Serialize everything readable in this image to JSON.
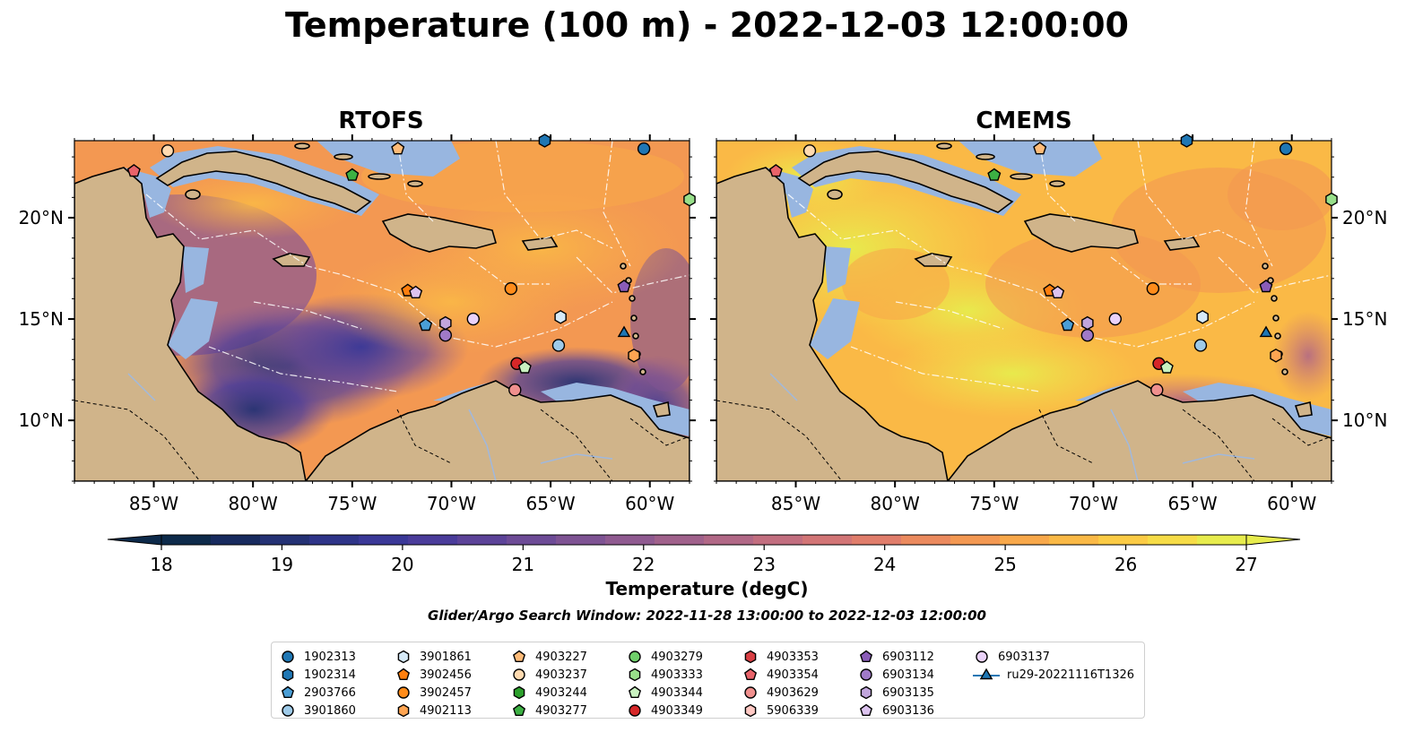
{
  "title": "Temperature (100 m) - 2022-12-03 12:00:00",
  "panels": [
    {
      "id": "rtofs",
      "title": "RTOFS"
    },
    {
      "id": "cmems",
      "title": "CMEMS"
    }
  ],
  "axes": {
    "lon_ticks": [
      "85°W",
      "80°W",
      "75°W",
      "70°W",
      "65°W",
      "60°W"
    ],
    "lat_ticks": [
      "20°N",
      "15°N",
      "10°N"
    ],
    "lon_range": [
      -89,
      -58
    ],
    "lat_range": [
      7,
      23.8
    ]
  },
  "colorbar": {
    "label": "Temperature (degC)",
    "ticks": [
      "18",
      "19",
      "20",
      "21",
      "22",
      "23",
      "24",
      "25",
      "26",
      "27"
    ],
    "range": [
      18,
      27
    ],
    "colors": [
      "#0d2a4a",
      "#172a5e",
      "#243174",
      "#2e3488",
      "#3a3897",
      "#4a3c9a",
      "#5c4398",
      "#6d4b96",
      "#7e5393",
      "#8f5a90",
      "#a0618b",
      "#b16886",
      "#c26e7f",
      "#d27576",
      "#e07d6b",
      "#eb8a5e",
      "#f39852",
      "#f8a84a",
      "#fab946",
      "#fbcb45",
      "#f6dc47",
      "#e7ec4d"
    ]
  },
  "search_window": "Glider/Argo Search Window: 2022-11-28 13:00:00 to 2022-12-03 12:00:00",
  "legend": [
    {
      "id": "1902313",
      "marker": "circle",
      "color": "#1f77b4"
    },
    {
      "id": "1902314",
      "marker": "hexagon",
      "color": "#1f77b4"
    },
    {
      "id": "2903766",
      "marker": "pentagon",
      "color": "#4a9ed6"
    },
    {
      "id": "3901860",
      "marker": "circle",
      "color": "#9ecae8"
    },
    {
      "id": "3901861",
      "marker": "hexagon",
      "color": "#d6eaf8"
    },
    {
      "id": "3902456",
      "marker": "pentagon",
      "color": "#ff7f0e"
    },
    {
      "id": "3902457",
      "marker": "circle",
      "color": "#ff8c1a"
    },
    {
      "id": "4902113",
      "marker": "hexagon",
      "color": "#ffa552"
    },
    {
      "id": "4903227",
      "marker": "pentagon",
      "color": "#ffbb78"
    },
    {
      "id": "4903237",
      "marker": "circle",
      "color": "#ffdab0"
    },
    {
      "id": "4903244",
      "marker": "hexagon",
      "color": "#2ca02c"
    },
    {
      "id": "4903277",
      "marker": "pentagon",
      "color": "#3cb043"
    },
    {
      "id": "4903279",
      "marker": "circle",
      "color": "#6fcf6a"
    },
    {
      "id": "4903333",
      "marker": "hexagon",
      "color": "#98df8a"
    },
    {
      "id": "4903344",
      "marker": "pentagon",
      "color": "#c9f2c0"
    },
    {
      "id": "4903349",
      "marker": "circle",
      "color": "#d62728"
    },
    {
      "id": "4903353",
      "marker": "hexagon",
      "color": "#d94045"
    },
    {
      "id": "4903354",
      "marker": "pentagon",
      "color": "#e8636a"
    },
    {
      "id": "4903629",
      "marker": "circle",
      "color": "#f0908e"
    },
    {
      "id": "5906339",
      "marker": "hexagon",
      "color": "#ffc9c4"
    },
    {
      "id": "6903112",
      "marker": "pentagon",
      "color": "#8a5cb8"
    },
    {
      "id": "6903134",
      "marker": "circle",
      "color": "#a07ac8"
    },
    {
      "id": "6903135",
      "marker": "hexagon",
      "color": "#c1a6dc"
    },
    {
      "id": "6903136",
      "marker": "pentagon",
      "color": "#dcc3ef"
    },
    {
      "id": "6903137",
      "marker": "circle",
      "color": "#ead2fa"
    },
    {
      "id": "ru29-20221116T1326",
      "marker": "triangle-line",
      "color": "#1f77b4"
    }
  ],
  "floats": [
    {
      "id": "1902313",
      "lon": -60.3,
      "lat": 23.4
    },
    {
      "id": "3901860",
      "lon": -64.6,
      "lat": 13.7
    },
    {
      "id": "3901861",
      "lon": -64.5,
      "lat": 15.1
    },
    {
      "id": "2903766",
      "lon": -71.3,
      "lat": 14.7
    },
    {
      "id": "3902457",
      "lon": -67.0,
      "lat": 16.5
    },
    {
      "id": "4903237",
      "lon": -84.3,
      "lat": 23.3
    },
    {
      "id": "4903227",
      "lon": -72.7,
      "lat": 23.4
    },
    {
      "id": "4903354",
      "lon": -86.0,
      "lat": 22.3
    },
    {
      "id": "4903277",
      "lon": -75.0,
      "lat": 22.1
    },
    {
      "id": "3902456",
      "lon": -72.2,
      "lat": 16.4
    },
    {
      "id": "6903136",
      "lon": -71.8,
      "lat": 16.3
    },
    {
      "id": "6903135",
      "lon": -70.3,
      "lat": 14.8
    },
    {
      "id": "6903134",
      "lon": -70.3,
      "lat": 14.2
    },
    {
      "id": "6903137",
      "lon": -68.9,
      "lat": 15.0
    },
    {
      "id": "4903349",
      "lon": -66.7,
      "lat": 12.8
    },
    {
      "id": "4903344",
      "lon": -66.3,
      "lat": 12.6
    },
    {
      "id": "4903629",
      "lon": -66.8,
      "lat": 11.5
    },
    {
      "id": "4903333",
      "lon": -58.0,
      "lat": 20.9
    },
    {
      "id": "1902314",
      "lon": -65.3,
      "lat": 23.8
    },
    {
      "id": "6903112",
      "lon": -61.3,
      "lat": 16.6
    },
    {
      "id": "4902113",
      "lon": -60.8,
      "lat": 13.2
    },
    {
      "id": "ru29-20221116T1326",
      "lon": -61.3,
      "lat": 14.3
    }
  ]
}
